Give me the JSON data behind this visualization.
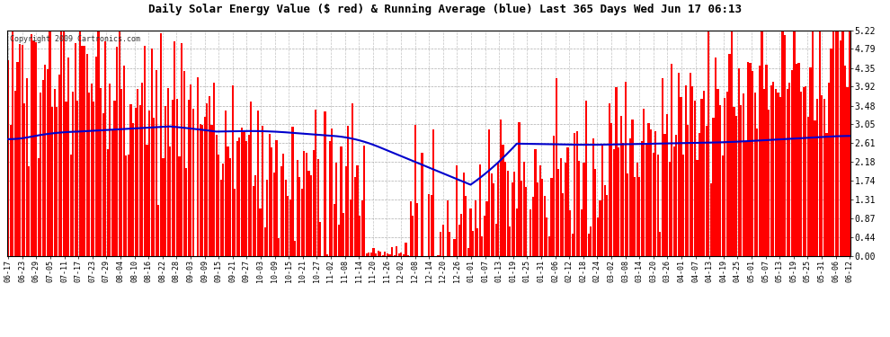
{
  "title": "Daily Solar Energy Value ($ red) & Running Average (blue) Last 365 Days Wed Jun 17 06:13",
  "copyright": "Copyright 2009 Cartronics.com",
  "bar_color": "#ff0000",
  "avg_line_color": "#0000cc",
  "background_color": "#ffffff",
  "plot_bg_color": "#ffffff",
  "grid_color": "#999999",
  "yticks": [
    0.0,
    0.44,
    0.87,
    1.31,
    1.74,
    2.18,
    2.61,
    3.05,
    3.48,
    3.92,
    4.35,
    4.79,
    5.22
  ],
  "ylim": [
    0.0,
    5.22
  ],
  "xtick_labels": [
    "06-17",
    "06-23",
    "06-29",
    "07-05",
    "07-11",
    "07-17",
    "07-23",
    "07-29",
    "08-04",
    "08-10",
    "08-16",
    "08-22",
    "08-28",
    "09-03",
    "09-09",
    "09-15",
    "09-21",
    "09-27",
    "10-03",
    "10-09",
    "10-15",
    "10-21",
    "10-27",
    "11-02",
    "11-08",
    "11-14",
    "11-20",
    "11-26",
    "12-02",
    "12-08",
    "12-14",
    "12-20",
    "12-26",
    "01-01",
    "01-07",
    "01-13",
    "01-19",
    "01-25",
    "01-31",
    "02-06",
    "02-12",
    "02-18",
    "02-24",
    "03-02",
    "03-08",
    "03-14",
    "03-20",
    "03-26",
    "04-01",
    "04-07",
    "04-13",
    "04-19",
    "04-25",
    "05-01",
    "05-07",
    "05-13",
    "05-19",
    "05-25",
    "05-31",
    "06-06",
    "06-12"
  ],
  "n_days": 365
}
